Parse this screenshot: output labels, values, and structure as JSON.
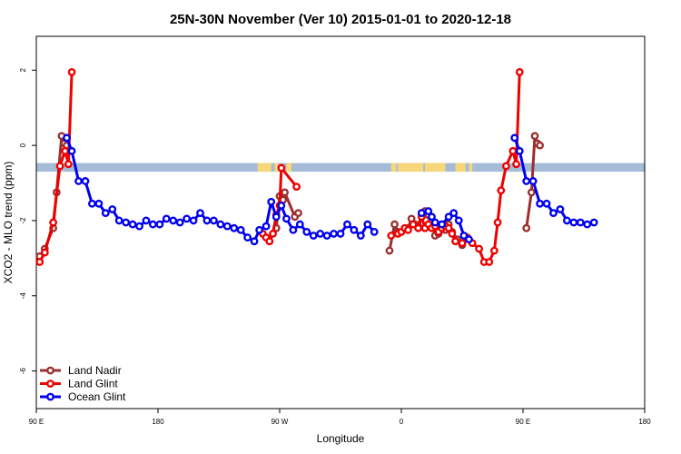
{
  "chart_data": {
    "type": "line",
    "title": "25N-30N November (Ver 10)   2015-01-01 to 2020-12-18",
    "xlabel": "Longitude",
    "ylabel": "XCO2 - MLO trend (ppm)",
    "xlim": [
      90,
      450
    ],
    "ylim": [
      -7.0,
      2.9
    ],
    "x_ticks": [
      {
        "value": 90,
        "label": "90 E"
      },
      {
        "value": 162,
        "label": "180"
      },
      {
        "value": 234,
        "label": "90 W"
      },
      {
        "value": 306,
        "label": "0"
      },
      {
        "value": 378,
        "label": "90 E"
      },
      {
        "value": 450,
        "label": "180"
      }
    ],
    "y_ticks": [
      {
        "value": 2,
        "label": "2"
      },
      {
        "value": 0,
        "label": "0"
      },
      {
        "value": -2,
        "label": "-2"
      },
      {
        "value": -4,
        "label": "-4"
      },
      {
        "value": -6,
        "label": "-6"
      }
    ],
    "grid": false,
    "legend_position": "bottom-left",
    "land_ocean_strip": {
      "y_range": [
        -0.7,
        -0.47
      ],
      "ocean_color": "#a4bcd8",
      "land_color": "#f7d77a",
      "land_segments": [
        [
          221,
          229
        ],
        [
          231,
          233
        ],
        [
          238,
          241
        ],
        [
          300,
          303
        ],
        [
          304,
          319
        ],
        [
          320,
          332
        ],
        [
          338,
          344
        ],
        [
          346,
          348
        ]
      ]
    },
    "series": [
      {
        "name": "Land Nadir",
        "color": "#9b3030",
        "points": [
          [
            92,
            -2.95
          ],
          [
            95,
            -2.75
          ],
          [
            100,
            -2.2
          ],
          [
            102,
            -1.25
          ],
          [
            105,
            0.25
          ],
          [
            106.5,
            0.05
          ],
          [
            108,
            0.0
          ],
          [
            232,
            -2.2
          ],
          [
            234,
            -1.35
          ],
          [
            236,
            -1.45
          ],
          [
            237,
            -1.25
          ],
          [
            243,
            -1.9
          ],
          [
            245,
            -1.8
          ],
          [
            299,
            -2.8
          ],
          [
            302,
            -2.1
          ],
          [
            304,
            -2.3
          ],
          [
            310,
            -2.2
          ],
          [
            312,
            -1.95
          ],
          [
            314,
            -2.1
          ],
          [
            316,
            -2.15
          ],
          [
            318,
            -1.8
          ],
          [
            320,
            -1.75
          ],
          [
            322,
            -1.85
          ],
          [
            324,
            -2.0
          ],
          [
            326,
            -2.4
          ],
          [
            328,
            -2.35
          ],
          [
            330,
            -2.2
          ],
          [
            332,
            -2.25
          ],
          [
            334,
            -2.1
          ],
          [
            336,
            -2.3
          ],
          [
            339,
            -2.5
          ],
          [
            342,
            -2.65
          ],
          [
            380,
            -2.2
          ],
          [
            383,
            -1.25
          ],
          [
            385,
            0.25
          ],
          [
            386.5,
            0.05
          ],
          [
            388,
            0.0
          ]
        ]
      },
      {
        "name": "Land Glint",
        "color": "#ee0000",
        "points": [
          [
            92,
            -3.1
          ],
          [
            95,
            -2.85
          ],
          [
            100,
            -2.05
          ],
          [
            104,
            -0.55
          ],
          [
            107,
            -0.15
          ],
          [
            109,
            -0.5
          ],
          [
            111,
            1.95
          ],
          [
            224,
            -2.35
          ],
          [
            226,
            -2.45
          ],
          [
            228,
            -2.55
          ],
          [
            230,
            -2.35
          ],
          [
            232,
            -1.85
          ],
          [
            234,
            -1.6
          ],
          [
            235,
            -0.6
          ],
          [
            244,
            -1.1
          ],
          [
            300,
            -2.4
          ],
          [
            304,
            -2.35
          ],
          [
            306,
            -2.3
          ],
          [
            308,
            -2.2
          ],
          [
            310,
            -2.25
          ],
          [
            313,
            -2.1
          ],
          [
            316,
            -2.2
          ],
          [
            318,
            -1.9
          ],
          [
            320,
            -2.2
          ],
          [
            322,
            -2.1
          ],
          [
            324,
            -2.2
          ],
          [
            326,
            -2.15
          ],
          [
            328,
            -2.3
          ],
          [
            330,
            -2.2
          ],
          [
            332,
            -2.15
          ],
          [
            334,
            -2.2
          ],
          [
            336,
            -2.35
          ],
          [
            338,
            -2.55
          ],
          [
            342,
            -2.6
          ],
          [
            345,
            -2.45
          ],
          [
            348,
            -2.6
          ],
          [
            352,
            -2.75
          ],
          [
            355,
            -3.1
          ],
          [
            358,
            -3.1
          ],
          [
            361,
            -2.8
          ],
          [
            363,
            -2.05
          ],
          [
            365,
            -1.2
          ],
          [
            368,
            -0.55
          ],
          [
            372,
            -0.15
          ],
          [
            374,
            -0.5
          ],
          [
            376,
            1.95
          ]
        ]
      },
      {
        "name": "Ocean Glint",
        "color": "#0000ee",
        "points": [
          [
            108,
            0.2
          ],
          [
            111,
            -0.15
          ],
          [
            115,
            -0.95
          ],
          [
            119,
            -0.95
          ],
          [
            123,
            -1.55
          ],
          [
            127,
            -1.55
          ],
          [
            131,
            -1.8
          ],
          [
            135,
            -1.7
          ],
          [
            139,
            -2.0
          ],
          [
            143,
            -2.05
          ],
          [
            147,
            -2.1
          ],
          [
            151,
            -2.15
          ],
          [
            155,
            -2.0
          ],
          [
            159,
            -2.1
          ],
          [
            163,
            -2.1
          ],
          [
            167,
            -1.95
          ],
          [
            171,
            -2.0
          ],
          [
            175,
            -2.05
          ],
          [
            179,
            -1.95
          ],
          [
            183,
            -2.0
          ],
          [
            187,
            -1.8
          ],
          [
            191,
            -2.0
          ],
          [
            195,
            -2.0
          ],
          [
            199,
            -2.1
          ],
          [
            203,
            -2.15
          ],
          [
            207,
            -2.2
          ],
          [
            211,
            -2.25
          ],
          [
            215,
            -2.45
          ],
          [
            219,
            -2.55
          ],
          [
            222,
            -2.25
          ],
          [
            226,
            -2.15
          ],
          [
            229,
            -1.5
          ],
          [
            232,
            -1.9
          ],
          [
            235,
            -1.6
          ],
          [
            238,
            -1.95
          ],
          [
            242,
            -2.25
          ],
          [
            246,
            -2.1
          ],
          [
            250,
            -2.3
          ],
          [
            254,
            -2.4
          ],
          [
            258,
            -2.35
          ],
          [
            262,
            -2.4
          ],
          [
            266,
            -2.35
          ],
          [
            270,
            -2.35
          ],
          [
            274,
            -2.1
          ],
          [
            278,
            -2.25
          ],
          [
            282,
            -2.4
          ],
          [
            286,
            -2.1
          ],
          [
            290,
            -2.3
          ],
          [
            318,
            -1.8
          ],
          [
            322,
            -1.75
          ],
          [
            324,
            -1.9
          ],
          [
            326,
            -2.05
          ],
          [
            330,
            -2.1
          ],
          [
            334,
            -1.9
          ],
          [
            337,
            -1.8
          ],
          [
            340,
            -2.0
          ],
          [
            343,
            -2.4
          ],
          [
            346,
            -2.5
          ],
          [
            373,
            0.2
          ],
          [
            376,
            -0.15
          ],
          [
            380,
            -0.95
          ],
          [
            384,
            -0.95
          ],
          [
            388,
            -1.55
          ],
          [
            392,
            -1.55
          ],
          [
            396,
            -1.8
          ],
          [
            400,
            -1.7
          ],
          [
            404,
            -2.0
          ],
          [
            408,
            -2.05
          ],
          [
            412,
            -2.05
          ],
          [
            416,
            -2.1
          ],
          [
            420,
            -2.05
          ]
        ]
      }
    ]
  }
}
